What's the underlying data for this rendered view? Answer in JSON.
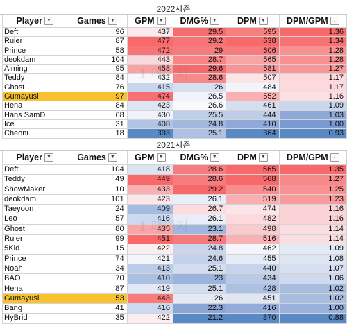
{
  "tables": [
    {
      "title": "2022시즌",
      "headers": [
        "Player",
        "Games",
        "GPM",
        "DMG%",
        "DPM",
        "DPM/GPM"
      ],
      "rows": [
        {
          "player": "Deft",
          "games": "96",
          "gpm": "437",
          "dmg": "29.5",
          "dpm": "595",
          "ratio": "1.36",
          "gpm_bg": "#fbe9ec",
          "dmg_bg": "#f56c6f",
          "dpm_bg": "#f6807e",
          "ratio_bg": "#f8696b"
        },
        {
          "player": "Ruler",
          "games": "87",
          "gpm": "477",
          "dmg": "29.2",
          "dpm": "638",
          "ratio": "1.34",
          "gpm_bg": "#f8696b",
          "dmg_bg": "#f67476",
          "dpm_bg": "#f8696b",
          "ratio_bg": "#f87274"
        },
        {
          "player": "Prince",
          "games": "58",
          "gpm": "472",
          "dmg": "29",
          "dpm": "606",
          "ratio": "1.28",
          "gpm_bg": "#f87577",
          "dmg_bg": "#f77b7d",
          "dpm_bg": "#f77b7d",
          "ratio_bg": "#f99193"
        },
        {
          "player": "deokdam",
          "games": "104",
          "gpm": "443",
          "dmg": "28.7",
          "dpm": "565",
          "ratio": "1.28",
          "gpm_bg": "#fad9dc",
          "dmg_bg": "#f88486",
          "dpm_bg": "#f9a3a5",
          "ratio_bg": "#f99193"
        },
        {
          "player": "Aiming",
          "games": "95",
          "gpm": "458",
          "dmg": "29.6",
          "dpm": "581",
          "ratio": "1.27",
          "gpm_bg": "#f9a2a4",
          "dmg_bg": "#f56a6c",
          "dpm_bg": "#f89496",
          "ratio_bg": "#f99698"
        },
        {
          "player": "Teddy",
          "games": "84",
          "gpm": "432",
          "dmg": "28.6",
          "dpm": "507",
          "ratio": "1.17",
          "gpm_bg": "#f6f7fb",
          "dmg_bg": "#f8898b",
          "dpm_bg": "#fbe3e6",
          "ratio_bg": "#fbd9dc"
        },
        {
          "player": "Ghost",
          "games": "76",
          "gpm": "415",
          "dmg": "26",
          "dpm": "484",
          "ratio": "1.17",
          "gpm_bg": "#c9d5ec",
          "dmg_bg": "#d7e0f0",
          "dpm_bg": "#f2f4fa",
          "ratio_bg": "#fbd9dc"
        },
        {
          "player": "Gumayusi",
          "games": "97",
          "gpm": "474",
          "dmg": "26.5",
          "dpm": "552",
          "ratio": "1.16",
          "gpm_bg": "#f87072",
          "dmg_bg": "#f1f3f9",
          "dpm_bg": "#faafb1",
          "ratio_bg": "#fbdfe2"
        },
        {
          "player": "Hena",
          "games": "84",
          "gpm": "423",
          "dmg": "26.6",
          "dpm": "461",
          "ratio": "1.09",
          "gpm_bg": "#dfe6f3",
          "dmg_bg": "#f8f9fc",
          "dpm_bg": "#d5dff0",
          "ratio_bg": "#cad6ec"
        },
        {
          "player": "Hans SamD",
          "games": "68",
          "gpm": "430",
          "dmg": "25.5",
          "dpm": "444",
          "ratio": "1.03",
          "gpm_bg": "#f0f3f9",
          "dmg_bg": "#c0cfe9",
          "dpm_bg": "#bfcde8",
          "ratio_bg": "#8ea9d8"
        },
        {
          "player": "Ice",
          "games": "31",
          "gpm": "408",
          "dmg": "24.8",
          "dpm": "410",
          "ratio": "1.00",
          "gpm_bg": "#b1c4e4",
          "dmg_bg": "#a2b8df",
          "dpm_bg": "#8fa9d8",
          "ratio_bg": "#7a9bd2"
        },
        {
          "player": "Cheoni",
          "games": "18",
          "gpm": "393",
          "dmg": "25.1",
          "dpm": "364",
          "ratio": "0.93",
          "gpm_bg": "#5a8ac6",
          "dmg_bg": "#aec1e3",
          "dpm_bg": "#5a8ac6",
          "ratio_bg": "#5a8ac6"
        }
      ]
    },
    {
      "title": "2021시즌",
      "headers": [
        "Player",
        "Games",
        "GPM",
        "DMG%",
        "DPM",
        "DPM/GPM"
      ],
      "rows": [
        {
          "player": "Deft",
          "games": "104",
          "gpm": "418",
          "dmg": "28.6",
          "dpm": "565",
          "ratio": "1.35",
          "gpm_bg": "#dbe3f2",
          "dmg_bg": "#f67d7f",
          "dpm_bg": "#f8696b",
          "ratio_bg": "#f8696b"
        },
        {
          "player": "Teddy",
          "games": "49",
          "gpm": "449",
          "dmg": "28.6",
          "dpm": "568",
          "ratio": "1.27",
          "gpm_bg": "#f8696b",
          "dmg_bg": "#f67d7f",
          "dpm_bg": "#f8696b",
          "ratio_bg": "#f8898b"
        },
        {
          "player": "ShowMaker",
          "games": "10",
          "gpm": "433",
          "dmg": "29.2",
          "dpm": "540",
          "ratio": "1.25",
          "gpm_bg": "#f9b0b2",
          "dmg_bg": "#f8696b",
          "dpm_bg": "#f88d8f",
          "ratio_bg": "#f89294"
        },
        {
          "player": "deokdam",
          "games": "101",
          "gpm": "423",
          "dmg": "26.1",
          "dpm": "519",
          "ratio": "1.23",
          "gpm_bg": "#fbe7ea",
          "dmg_bg": "#e8edf7",
          "dpm_bg": "#f9aeb0",
          "ratio_bg": "#f99b9d"
        },
        {
          "player": "Taeyoon",
          "games": "24",
          "gpm": "409",
          "dmg": "26.7",
          "dpm": "474",
          "ratio": "1.16",
          "gpm_bg": "#a6bbe0",
          "dmg_bg": "#fbdbde",
          "dpm_bg": "#fbe5e8",
          "ratio_bg": "#fbd3d6"
        },
        {
          "player": "Leo",
          "games": "57",
          "gpm": "416",
          "dmg": "26.1",
          "dpm": "482",
          "ratio": "1.16",
          "gpm_bg": "#cdd9ee",
          "dmg_bg": "#e8edf7",
          "dpm_bg": "#fbd9dc",
          "ratio_bg": "#fbd3d6"
        },
        {
          "player": "Ghost",
          "games": "80",
          "gpm": "435",
          "dmg": "23.1",
          "dpm": "498",
          "ratio": "1.14",
          "gpm_bg": "#f9a4a6",
          "dmg_bg": "#9fb6de",
          "dpm_bg": "#facbce",
          "ratio_bg": "#fbdee1"
        },
        {
          "player": "Ruler",
          "games": "99",
          "gpm": "451",
          "dmg": "28.7",
          "dpm": "516",
          "ratio": "1.14",
          "gpm_bg": "#f8696b",
          "dmg_bg": "#f67a7c",
          "dpm_bg": "#f9b1b3",
          "ratio_bg": "#fbdee1"
        },
        {
          "player": "5Kid",
          "games": "15",
          "gpm": "422",
          "dmg": "24.8",
          "dpm": "462",
          "ratio": "1.09",
          "gpm_bg": "#fbeef0",
          "dmg_bg": "#c9d5ec",
          "dpm_bg": "#f3f5fa",
          "ratio_bg": "#e4eaf5"
        },
        {
          "player": "Prince",
          "games": "74",
          "gpm": "421",
          "dmg": "24.6",
          "dpm": "455",
          "ratio": "1.08",
          "gpm_bg": "#f3f5fa",
          "dmg_bg": "#c3d1ea",
          "dpm_bg": "#e6ecf6",
          "ratio_bg": "#dde5f3"
        },
        {
          "player": "Noah",
          "games": "34",
          "gpm": "413",
          "dmg": "25.1",
          "dpm": "440",
          "ratio": "1.07",
          "gpm_bg": "#bccbe7",
          "dmg_bg": "#d3ddef",
          "dpm_bg": "#c6d3eb",
          "ratio_bg": "#d6e0f1"
        },
        {
          "player": "BAO",
          "games": "70",
          "gpm": "410",
          "dmg": "23",
          "dpm": "434",
          "ratio": "1.06",
          "gpm_bg": "#abbfe2",
          "dmg_bg": "#9cb4dd",
          "dpm_bg": "#b9c9e6",
          "ratio_bg": "#cfdaef"
        },
        {
          "player": "Hena",
          "games": "87",
          "gpm": "419",
          "dmg": "25.1",
          "dpm": "428",
          "ratio": "1.02",
          "gpm_bg": "#e2e9f5",
          "dmg_bg": "#d3ddef",
          "dpm_bg": "#acc0e2",
          "ratio_bg": "#a9bde1"
        },
        {
          "player": "Gumayusi",
          "games": "53",
          "gpm": "443",
          "dmg": "26",
          "dpm": "451",
          "ratio": "1.02",
          "gpm_bg": "#f87c7e",
          "dmg_bg": "#e3e9f5",
          "dpm_bg": "#dfe6f3",
          "ratio_bg": "#a9bde1"
        },
        {
          "player": "Bang",
          "games": "41",
          "gpm": "416",
          "dmg": "22.3",
          "dpm": "416",
          "ratio": "1.00",
          "gpm_bg": "#cdd9ee",
          "dmg_bg": "#8ba6d6",
          "dpm_bg": "#94acd9",
          "ratio_bg": "#98b0db"
        },
        {
          "player": "HyBrid",
          "games": "35",
          "gpm": "422",
          "dmg": "21.2",
          "dpm": "370",
          "ratio": "0.88",
          "gpm_bg": "#fbeef0",
          "dmg_bg": "#5a8ac6",
          "dpm_bg": "#5a8ac6",
          "ratio_bg": "#5a8ac6"
        }
      ]
    }
  ],
  "highlight_player": "Gumayusi",
  "highlight_color": "#f7c22e",
  "watermark": "1 페이지"
}
